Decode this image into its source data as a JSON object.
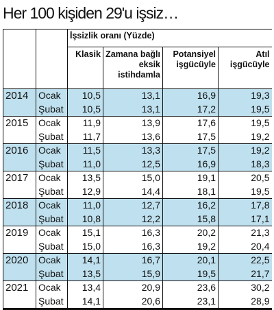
{
  "header": {
    "title": "Her 100 kişiden 29'u işsiz…"
  },
  "table": {
    "group_header": "İşsizlik oranı (Yüzde)",
    "columns": [
      "Klasik",
      "Zamana bağlı eksik istihdamla",
      "Potansiyel işgücüyle",
      "Atıl işgücüyle"
    ],
    "rows": [
      {
        "year": "2014",
        "entries": [
          {
            "month": "Ocak",
            "values": [
              "10,5",
              "13,1",
              "16,9",
              "19,3"
            ]
          },
          {
            "month": "Şubat",
            "values": [
              "10,5",
              "13,1",
              "17,2",
              "19,5"
            ]
          }
        ]
      },
      {
        "year": "2015",
        "entries": [
          {
            "month": "Ocak",
            "values": [
              "11,9",
              "13,9",
              "17,6",
              "19,5"
            ]
          },
          {
            "month": "Şubat",
            "values": [
              "11,7",
              "13,6",
              "17,5",
              "19,2"
            ]
          }
        ]
      },
      {
        "year": "2016",
        "entries": [
          {
            "month": "Ocak",
            "values": [
              "11,5",
              "13,3",
              "17,5",
              "19,2"
            ]
          },
          {
            "month": "Şubat",
            "values": [
              "11,0",
              "12,5",
              "16,9",
              "18,3"
            ]
          }
        ]
      },
      {
        "year": "2017",
        "entries": [
          {
            "month": "Ocak",
            "values": [
              "13,5",
              "15,0",
              "19,1",
              "20,5"
            ]
          },
          {
            "month": "Şubat",
            "values": [
              "12,9",
              "14,4",
              "18,1",
              "19,5"
            ]
          }
        ]
      },
      {
        "year": "2018",
        "entries": [
          {
            "month": "Ocak",
            "values": [
              "11,0",
              "12,7",
              "16,2",
              "17,8"
            ]
          },
          {
            "month": "Şubat",
            "values": [
              "10,8",
              "12,2",
              "15,8",
              "17,1"
            ]
          }
        ]
      },
      {
        "year": "2019",
        "entries": [
          {
            "month": "Ocak",
            "values": [
              "15,1",
              "16,3",
              "20,2",
              "21,3"
            ]
          },
          {
            "month": "Şubat",
            "values": [
              "15,0",
              "16,3",
              "19,2",
              "20,4"
            ]
          }
        ]
      },
      {
        "year": "2020",
        "entries": [
          {
            "month": "Ocak",
            "values": [
              "14,1",
              "16,7",
              "20,1",
              "22,5"
            ]
          },
          {
            "month": "Şubat",
            "values": [
              "13,5",
              "15,9",
              "19,5",
              "21,7"
            ]
          }
        ]
      },
      {
        "year": "2021",
        "entries": [
          {
            "month": "Ocak",
            "values": [
              "13,4",
              "20,9",
              "23,6",
              "30,2"
            ]
          },
          {
            "month": "Şubat",
            "values": [
              "14,1",
              "20,6",
              "23,1",
              "28,9"
            ]
          }
        ]
      }
    ]
  }
}
